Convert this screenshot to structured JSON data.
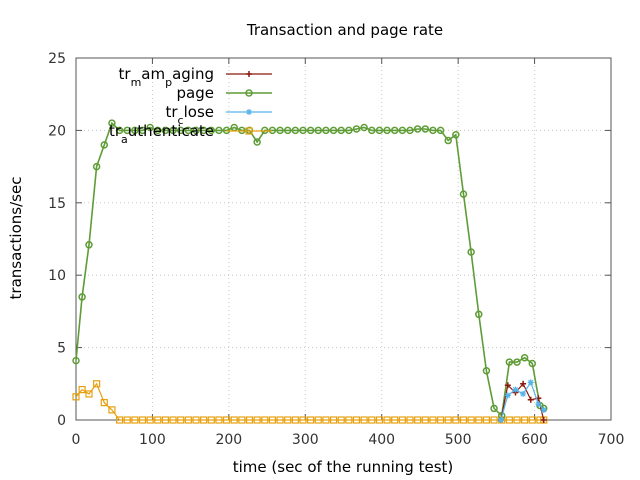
{
  "chart_data": {
    "type": "line",
    "title": "Transaction and page rate",
    "xlabel": "time (sec of the running test)",
    "ylabel": "transactions/sec",
    "xlim": [
      0,
      700
    ],
    "ylim": [
      0,
      25
    ],
    "x_ticks": [
      0,
      100,
      200,
      300,
      400,
      500,
      600,
      700
    ],
    "y_ticks": [
      0,
      5,
      10,
      15,
      20,
      25
    ],
    "grid": true,
    "legend_position": "top-left",
    "series": [
      {
        "name": "tr_m am_p aging",
        "name_parts": [
          [
            "tr",
            ""
          ],
          [
            "m",
            "sub"
          ],
          [
            "am",
            ""
          ],
          [
            "p",
            "sub"
          ],
          [
            "aging",
            ""
          ]
        ],
        "color": "#8b1a0e",
        "marker": "plus",
        "x": [
          556,
          565,
          575,
          585,
          595,
          605,
          612
        ],
        "y": [
          0.0,
          2.4,
          1.9,
          2.5,
          1.4,
          1.5,
          0.0
        ]
      },
      {
        "name": "page",
        "name_parts": [
          [
            "page",
            ""
          ]
        ],
        "color": "#5e9c36",
        "marker": "circle",
        "x": [
          0,
          8,
          17,
          27,
          37,
          47,
          57,
          67,
          77,
          87,
          97,
          107,
          117,
          127,
          137,
          147,
          157,
          167,
          177,
          187,
          197,
          207,
          217,
          227,
          237,
          247,
          257,
          267,
          277,
          287,
          297,
          307,
          317,
          327,
          337,
          347,
          357,
          367,
          377,
          387,
          397,
          407,
          417,
          427,
          437,
          447,
          457,
          467,
          477,
          487,
          497,
          507,
          517,
          527,
          537,
          547,
          557,
          567,
          577,
          587,
          597,
          607,
          612
        ],
        "y": [
          4.1,
          8.5,
          12.1,
          17.5,
          19.0,
          20.5,
          20.0,
          20.0,
          20.0,
          20.0,
          20.2,
          20.0,
          20.0,
          20.0,
          20.0,
          20.0,
          20.0,
          20.0,
          20.0,
          20.0,
          20.0,
          20.2,
          20.0,
          20.0,
          19.2,
          20.0,
          20.0,
          20.0,
          20.0,
          20.0,
          20.0,
          20.0,
          20.0,
          20.0,
          20.0,
          20.0,
          20.0,
          20.1,
          20.2,
          20.0,
          20.0,
          20.0,
          20.0,
          20.0,
          20.0,
          20.1,
          20.1,
          20.0,
          20.0,
          19.3,
          19.7,
          15.6,
          11.6,
          7.3,
          3.4,
          0.8,
          0.3,
          4.0,
          4.0,
          4.3,
          3.9,
          1.0,
          0.8
        ]
      },
      {
        "name": "tr_c lose",
        "name_parts": [
          [
            "tr",
            ""
          ],
          [
            "c",
            "sub"
          ],
          [
            "lose",
            ""
          ]
        ],
        "color": "#56b4e9",
        "marker": "star",
        "x": [
          556,
          565,
          575,
          585,
          595,
          605,
          612
        ],
        "y": [
          0.0,
          1.7,
          2.1,
          1.8,
          2.6,
          1.1,
          0.7
        ]
      },
      {
        "name": "tr_a uthenticate",
        "name_parts": [
          [
            "tr",
            ""
          ],
          [
            "a",
            "sub"
          ],
          [
            "uthenticate",
            ""
          ]
        ],
        "color": "#e6a00e",
        "marker": "square",
        "x": [
          0,
          8,
          17,
          27,
          37,
          47,
          57,
          67,
          77,
          87,
          97,
          107,
          117,
          127,
          137,
          147,
          157,
          167,
          177,
          187,
          197,
          207,
          217,
          227,
          237,
          247,
          257,
          267,
          277,
          287,
          297,
          307,
          317,
          327,
          337,
          347,
          357,
          367,
          377,
          387,
          397,
          407,
          417,
          427,
          437,
          447,
          457,
          467,
          477,
          487,
          497,
          507,
          517,
          527,
          537,
          547,
          557,
          567,
          577,
          587,
          597,
          607,
          612
        ],
        "y": [
          1.6,
          2.1,
          1.8,
          2.5,
          1.2,
          0.7,
          0,
          0,
          0,
          0,
          0,
          0,
          0,
          0,
          0,
          0,
          0,
          0,
          0,
          0,
          0,
          0,
          0,
          0,
          0,
          0,
          0,
          0,
          0,
          0,
          0,
          0,
          0,
          0,
          0,
          0,
          0,
          0,
          0,
          0,
          0,
          0,
          0,
          0,
          0,
          0,
          0,
          0,
          0,
          0,
          0,
          0,
          0,
          0,
          0,
          0,
          0,
          0,
          0,
          0,
          0,
          0,
          0
        ]
      }
    ]
  }
}
